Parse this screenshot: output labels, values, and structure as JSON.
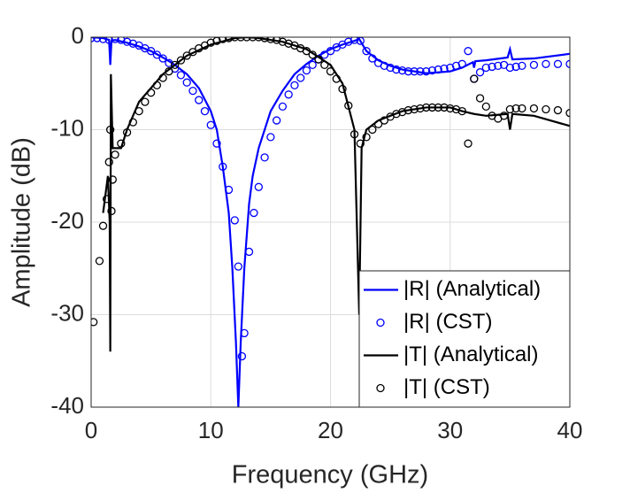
{
  "chart_data": {
    "type": "line",
    "xlabel": "Frequency (GHz)",
    "ylabel": "Amplitude (dB)",
    "xlim": [
      0,
      40
    ],
    "ylim": [
      -40,
      0
    ],
    "xticks": [
      0,
      10,
      20,
      30,
      40
    ],
    "yticks": [
      -40,
      -30,
      -20,
      -10,
      0
    ],
    "grid": true,
    "legend": "lower right",
    "series": [
      {
        "name": "|R| (Analytical)",
        "color": "#0000ff",
        "style": "line",
        "x": [
          0,
          1,
          1.5,
          1.6,
          1.7,
          2,
          3,
          4,
          5,
          6,
          7,
          8,
          9,
          10,
          10.5,
          11,
          11.5,
          11.8,
          12.1,
          12.3,
          12.5,
          12.8,
          13.2,
          13.5,
          14,
          15,
          16,
          17,
          18,
          19,
          20,
          21,
          22,
          22.4,
          23,
          24,
          25,
          26,
          28,
          30,
          31,
          31.9,
          32,
          32.1,
          33,
          34.8,
          35,
          35.2,
          37,
          40
        ],
        "values": [
          0,
          -0.1,
          -0.3,
          -3,
          -0.4,
          -0.3,
          -0.6,
          -1,
          -1.5,
          -2.2,
          -3,
          -4,
          -5.5,
          -8,
          -10,
          -14,
          -19,
          -25,
          -33,
          -40,
          -33,
          -25,
          -18,
          -15,
          -12,
          -8,
          -5.8,
          -4,
          -2.9,
          -2,
          -1.3,
          -0.8,
          -0.4,
          -0.2,
          -1.5,
          -2.5,
          -3.1,
          -3.5,
          -3.9,
          -3.7,
          -3.3,
          -2.7,
          -3.3,
          -2.6,
          -2.5,
          -2.2,
          -1.3,
          -2.4,
          -2.3,
          -1.8
        ]
      },
      {
        "name": "|R| (CST)",
        "color": "#0000ff",
        "style": "markers",
        "x": [
          0,
          0.5,
          1,
          1.5,
          2,
          2.5,
          3,
          3.5,
          4,
          4.5,
          5,
          5.5,
          6,
          6.5,
          7,
          7.5,
          8,
          8.5,
          9,
          9.5,
          10,
          10.5,
          11,
          11.5,
          12,
          12.3,
          12.6,
          12.8,
          13.2,
          13.6,
          14,
          14.5,
          15,
          15.5,
          16,
          16.5,
          17,
          17.5,
          18,
          18.5,
          19,
          19.5,
          20,
          20.5,
          21,
          21.5,
          22,
          22.5,
          23,
          23.5,
          24,
          24.5,
          25,
          25.5,
          26,
          26.5,
          27,
          27.5,
          28,
          28.5,
          29,
          29.5,
          30,
          30.5,
          31,
          31.5,
          32,
          32.5,
          33,
          33.5,
          34,
          34.5,
          35,
          35.5,
          36,
          37,
          38,
          39,
          40
        ],
        "values": [
          -0.1,
          -0.1,
          -0.2,
          -0.3,
          -0.2,
          -0.3,
          -0.5,
          -0.7,
          -0.9,
          -1.2,
          -1.5,
          -1.9,
          -2.3,
          -2.8,
          -3.4,
          -4.1,
          -4.9,
          -5.8,
          -6.8,
          -8,
          -9.5,
          -11.5,
          -14,
          -16.5,
          -19.8,
          -24.8,
          -34.5,
          -32,
          -23.2,
          -19,
          -16.2,
          -13,
          -10.8,
          -9,
          -7.5,
          -6.2,
          -5.2,
          -4.4,
          -3.6,
          -3,
          -2.4,
          -1.9,
          -1.5,
          -1.1,
          -0.8,
          -0.5,
          -0.3,
          -0.4,
          -1.5,
          -2.3,
          -2.8,
          -3.1,
          -3.3,
          -3.5,
          -3.6,
          -3.7,
          -3.7,
          -3.7,
          -3.7,
          -3.6,
          -3.5,
          -3.4,
          -3.3,
          -3.1,
          -2.9,
          -1.5,
          -4.5,
          -3.8,
          -3.3,
          -3.2,
          -3.1,
          -3,
          -3.3,
          -3.2,
          -3.1,
          -3,
          -2.9,
          -2.9,
          -2.9
        ]
      },
      {
        "name": "|T| (Analytical)",
        "color": "#000000",
        "style": "line",
        "x": [
          1,
          1.4,
          1.55,
          1.6,
          1.65,
          1.8,
          2.5,
          3,
          4,
          6,
          8,
          10,
          12,
          13,
          14,
          16,
          18,
          20,
          21,
          22,
          22.4,
          22.6,
          23,
          24,
          26,
          28,
          30,
          31,
          32,
          33,
          34.8,
          35,
          35.2,
          37,
          40
        ],
        "values": [
          -19,
          -15,
          -20,
          -34,
          -4,
          -12,
          -12,
          -10,
          -7,
          -4,
          -2,
          -0.8,
          -0.1,
          0,
          -0.1,
          -0.5,
          -1.3,
          -3,
          -5,
          -10,
          -30,
          -12,
          -10,
          -9,
          -8,
          -7.6,
          -7.6,
          -8,
          -8.3,
          -8.5,
          -8.3,
          -10,
          -8.3,
          -8.5,
          -9.6
        ]
      },
      {
        "name": "|T| (CST)",
        "color": "#000000",
        "style": "markers",
        "x": [
          0.2,
          0.7,
          1,
          1.3,
          1.5,
          1.6,
          1.7,
          1.8,
          2,
          2.5,
          3,
          3.5,
          4,
          4.5,
          5,
          5.5,
          6,
          6.5,
          7,
          7.5,
          8,
          8.5,
          9,
          9.5,
          10,
          10.5,
          11,
          11.5,
          12,
          12.5,
          13,
          13.5,
          14,
          14.5,
          15,
          15.5,
          16,
          16.5,
          17,
          17.5,
          18,
          18.5,
          19,
          19.5,
          20,
          20.5,
          21,
          21.5,
          22,
          22.5,
          23,
          23.5,
          24,
          24.5,
          25,
          25.5,
          26,
          26.5,
          27,
          27.5,
          28,
          28.5,
          29,
          29.5,
          30,
          30.5,
          31,
          31.5,
          32,
          32.5,
          33,
          33.5,
          34,
          34.5,
          35,
          35.5,
          36,
          37,
          38,
          39,
          40
        ],
        "values": [
          -30.8,
          -24.2,
          -20.4,
          -17.5,
          -13.5,
          -10,
          -18.8,
          -15.4,
          -12.7,
          -11.5,
          -10.3,
          -9.2,
          -8,
          -7,
          -6,
          -5.2,
          -4.4,
          -3.7,
          -3,
          -2.5,
          -2,
          -1.6,
          -1.2,
          -0.9,
          -0.6,
          -0.4,
          -0.2,
          -0.1,
          0,
          0,
          0,
          0,
          0,
          -0.1,
          -0.2,
          -0.3,
          -0.5,
          -0.7,
          -0.9,
          -1.2,
          -1.5,
          -1.9,
          -2.4,
          -3,
          -3.7,
          -4.5,
          -5.6,
          -7.4,
          -10.5,
          -11.5,
          -10.8,
          -10,
          -9.4,
          -9,
          -8.6,
          -8.3,
          -8.1,
          -7.9,
          -7.8,
          -7.7,
          -7.6,
          -7.6,
          -7.6,
          -7.6,
          -7.7,
          -7.8,
          -8,
          -11.5,
          -4.5,
          -6.6,
          -7.5,
          -8.5,
          -8.8,
          -8.5,
          -7.8,
          -7.7,
          -7.7,
          -7.7,
          -7.8,
          -7.9,
          -8.2
        ]
      }
    ]
  }
}
